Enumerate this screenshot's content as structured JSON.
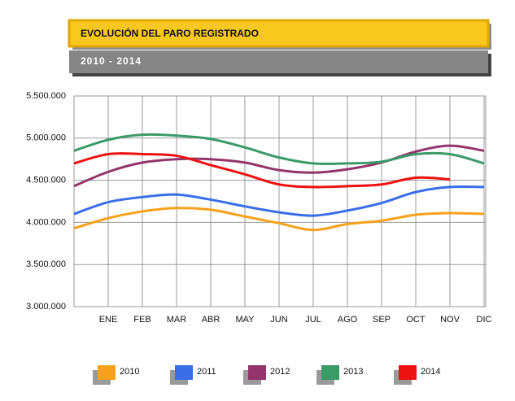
{
  "chart_data": {
    "type": "line",
    "title": "EVOLUCIÓN DEL PARO REGISTRADO",
    "subtitle": "2010 - 2014",
    "categories": [
      null,
      "ENE",
      "FEB",
      "MAR",
      "ABR",
      "MAY",
      "JUN",
      "JUL",
      "AGO",
      "SEP",
      "OCT",
      "NOV",
      "DIC"
    ],
    "series": [
      {
        "name": "2010",
        "color": "#f7a01a",
        "values": [
          3930000,
          4050000,
          4130000,
          4170000,
          4150000,
          4070000,
          3990000,
          3910000,
          3980000,
          4020000,
          4090000,
          4110000,
          4100000
        ]
      },
      {
        "name": "2011",
        "color": "#3a6ee8",
        "values": [
          4100000,
          4240000,
          4300000,
          4330000,
          4270000,
          4190000,
          4120000,
          4080000,
          4140000,
          4230000,
          4360000,
          4420000,
          4420000
        ]
      },
      {
        "name": "2012",
        "color": "#93356a",
        "values": [
          4430000,
          4600000,
          4710000,
          4750000,
          4750000,
          4710000,
          4620000,
          4590000,
          4630000,
          4710000,
          4840000,
          4910000,
          4850000
        ]
      },
      {
        "name": "2013",
        "color": "#3a9a68",
        "values": [
          4850000,
          4980000,
          5040000,
          5030000,
          4990000,
          4890000,
          4770000,
          4700000,
          4700000,
          4720000,
          4810000,
          4810000,
          4700000
        ]
      },
      {
        "name": "2014",
        "color": "#ee1111",
        "values": [
          4700000,
          4810000,
          4810000,
          4790000,
          4680000,
          4570000,
          4450000,
          4420000,
          4430000,
          4450000,
          4530000,
          4510000,
          null
        ]
      }
    ],
    "ylim": [
      3000000,
      5500000
    ],
    "yticks": [
      {
        "value": 3000000,
        "label": "3.000.000"
      },
      {
        "value": 3500000,
        "label": "3.500.000"
      },
      {
        "value": 4000000,
        "label": "4.000.000"
      },
      {
        "value": 4500000,
        "label": "4.500.000"
      },
      {
        "value": 5000000,
        "label": "5.000.000"
      },
      {
        "value": 5500000,
        "label": "5.500.000"
      }
    ],
    "grid": true,
    "legend": "bottom"
  }
}
